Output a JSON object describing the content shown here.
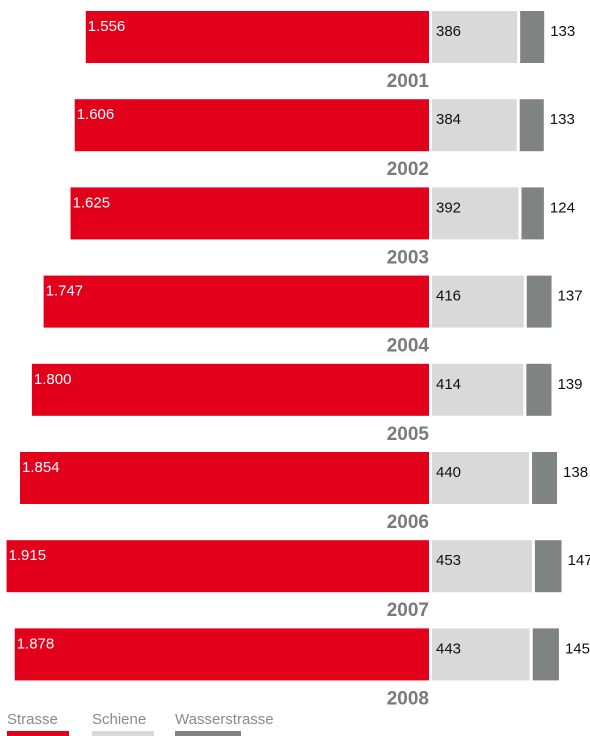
{
  "chart_data": {
    "type": "bar",
    "orientation": "horizontal",
    "stacked": true,
    "categories": [
      "2001",
      "2002",
      "2003",
      "2004",
      "2005",
      "2006",
      "2007",
      "2008"
    ],
    "series": [
      {
        "name": "Strasse",
        "color": "#e2001a",
        "values": [
          1556,
          1606,
          1625,
          1747,
          1800,
          1854,
          1915,
          1878
        ],
        "labels": [
          "1.556",
          "1.606",
          "1.625",
          "1.747",
          "1.800",
          "1.854",
          "1.915",
          "1.878"
        ]
      },
      {
        "name": "Schiene",
        "color": "#d9d9d9",
        "values": [
          386,
          384,
          392,
          416,
          414,
          440,
          453,
          443
        ],
        "labels": [
          "386",
          "384",
          "392",
          "416",
          "414",
          "440",
          "453",
          "443"
        ]
      },
      {
        "name": "Wasserstrasse",
        "color": "#7f8482",
        "values": [
          133,
          133,
          124,
          137,
          139,
          138,
          147,
          145
        ],
        "labels": [
          "133",
          "133",
          "124",
          "137",
          "139",
          "138",
          "147",
          "145"
        ]
      }
    ],
    "legend_position": "bottom-left",
    "grid": false
  }
}
